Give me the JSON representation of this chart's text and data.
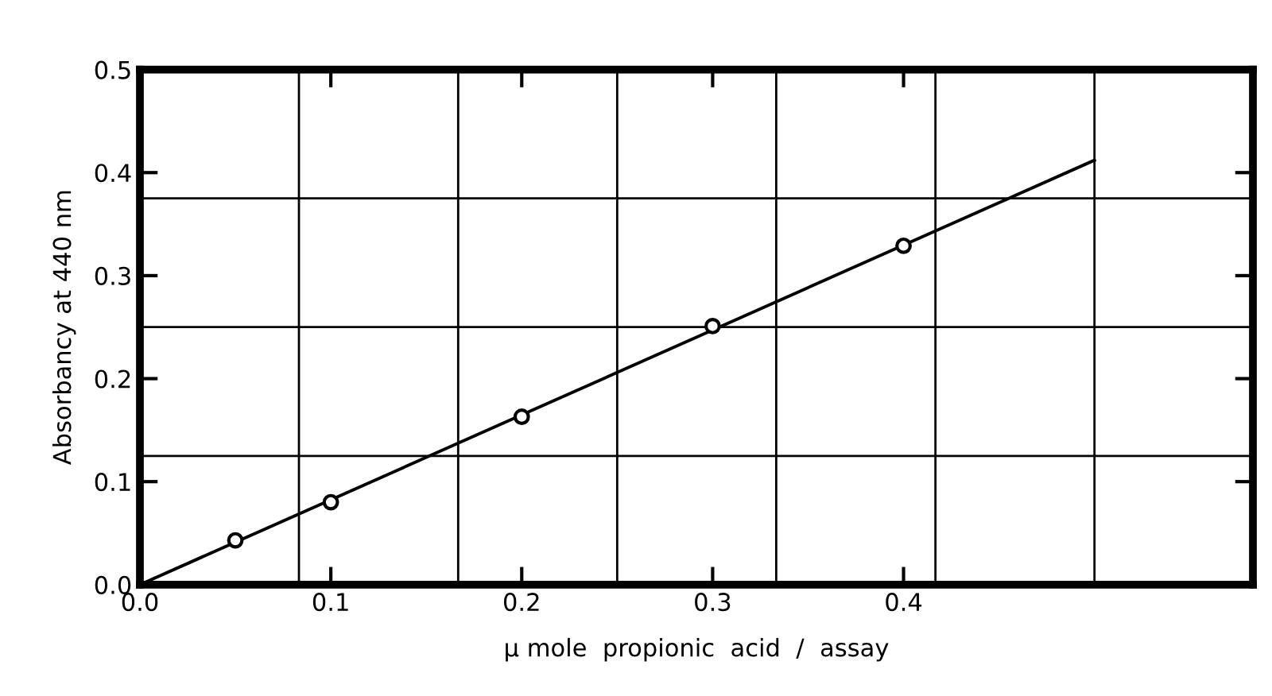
{
  "chart_data": {
    "type": "scatter",
    "xlabel": "μ mole  propionic  acid  /  assay",
    "ylabel": "Absorbancy at 440 nm",
    "xlim": [
      0,
      0.583
    ],
    "ylim": [
      0,
      0.5
    ],
    "xticks": [
      {
        "value": 0,
        "label": "0.0"
      },
      0.1,
      0.2,
      0.3,
      0.4
    ],
    "yticks": [
      {
        "value": 0,
        "label": "0.0"
      },
      0.1,
      0.2,
      0.3,
      0.4,
      0.5
    ],
    "grid": false,
    "series": [
      {
        "color": "#000000",
        "marker": "circle",
        "x": [
          0.05,
          0.1,
          0.2,
          0.3,
          0.4
        ],
        "values": [
          0.043,
          0.08,
          0.163,
          0.251,
          0.329
        ]
      },
      {
        "type": "line",
        "color": "#000000",
        "marker": "none",
        "line_style": "solid",
        "x": [
          0,
          0.5
        ],
        "values": [
          0,
          0.412
        ]
      }
    ],
    "ref_lines": [
      {
        "axis": "x",
        "value": 0.0833,
        "color": "#000000"
      },
      {
        "axis": "x",
        "value": 0.1667,
        "color": "#000000"
      },
      {
        "axis": "x",
        "value": 0.25,
        "color": "#000000"
      },
      {
        "axis": "x",
        "value": 0.3333,
        "color": "#000000"
      },
      {
        "axis": "x",
        "value": 0.4167,
        "color": "#000000"
      },
      {
        "axis": "x",
        "value": 0.5,
        "color": "#000000"
      },
      {
        "axis": "y",
        "value": 0.125,
        "color": "#000000"
      },
      {
        "axis": "y",
        "value": 0.25,
        "color": "#000000"
      },
      {
        "axis": "y",
        "value": 0.375,
        "color": "#000000"
      }
    ]
  }
}
